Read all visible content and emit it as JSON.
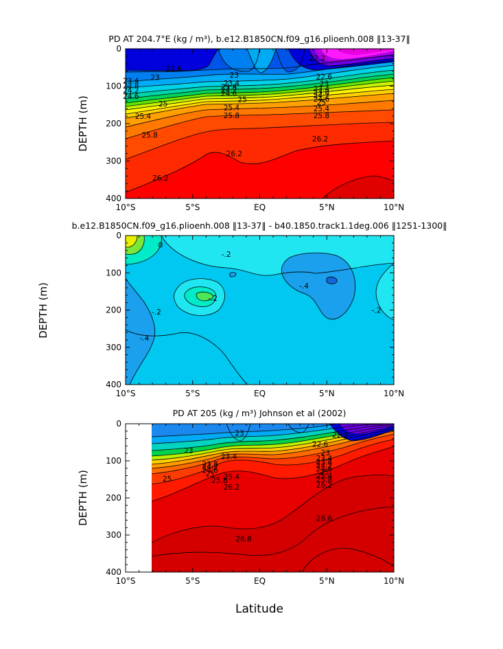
{
  "figure": {
    "xlabel": "Latitude",
    "x_tick_labels": [
      "10°S",
      "5°S",
      "EQ",
      "5°N",
      "10°N"
    ],
    "y_tick_labels": [
      "0",
      "100",
      "200",
      "300",
      "400"
    ],
    "ylabel": "DEPTH (m)"
  },
  "chart_data": [
    {
      "type": "heatmap",
      "title": "PD AT 204.7°E (kg / m³), b.e12.B1850CN.f09_g16.plioenh.008 ‖13-37‖",
      "xlabel": "",
      "ylabel": "DEPTH (m)",
      "x_range": [
        -10,
        10
      ],
      "ylim": [
        0,
        400
      ],
      "contour_labels": [
        {
          "text": "22.2",
          "x": 4.3,
          "y": 25
        },
        {
          "text": "22.6",
          "x": -6.4,
          "y": 53
        },
        {
          "text": "23",
          "x": -7.8,
          "y": 76
        },
        {
          "text": "23",
          "x": -1.9,
          "y": 70
        },
        {
          "text": "22.6",
          "x": 4.8,
          "y": 74
        },
        {
          "text": "23",
          "x": 4.8,
          "y": 93
        },
        {
          "text": "23.4",
          "x": -9.6,
          "y": 85
        },
        {
          "text": "23.8",
          "x": -9.6,
          "y": 98
        },
        {
          "text": "24.2",
          "x": -9.6,
          "y": 111
        },
        {
          "text": "24.6",
          "x": -9.6,
          "y": 127
        },
        {
          "text": "25",
          "x": -7.2,
          "y": 147
        },
        {
          "text": "23.4",
          "x": -2.1,
          "y": 92
        },
        {
          "text": "23.8",
          "x": -2.3,
          "y": 102
        },
        {
          "text": "24.2",
          "x": -2.3,
          "y": 110
        },
        {
          "text": "24.6",
          "x": -2.3,
          "y": 119
        },
        {
          "text": "25",
          "x": -1.3,
          "y": 135
        },
        {
          "text": "25.4",
          "x": -2.1,
          "y": 157
        },
        {
          "text": "25.8",
          "x": -2.1,
          "y": 178
        },
        {
          "text": "23.4",
          "x": 4.6,
          "y": 106
        },
        {
          "text": "23.8",
          "x": 4.6,
          "y": 116
        },
        {
          "text": "24.2",
          "x": 4.6,
          "y": 125
        },
        {
          "text": "24.6",
          "x": 4.6,
          "y": 134
        },
        {
          "text": "25",
          "x": 4.6,
          "y": 143
        },
        {
          "text": "25.4",
          "x": 4.6,
          "y": 160
        },
        {
          "text": "25.8",
          "x": 4.6,
          "y": 178
        },
        {
          "text": "25.4",
          "x": -8.7,
          "y": 180
        },
        {
          "text": "25.8",
          "x": -8.2,
          "y": 230
        },
        {
          "text": "26.2",
          "x": 4.5,
          "y": 240
        },
        {
          "text": "26.2",
          "x": -1.9,
          "y": 280
        },
        {
          "text": "26.2",
          "x": -7.4,
          "y": 345
        }
      ]
    },
    {
      "type": "heatmap",
      "title": "b.e12.B1850CN.f09_g16.plioenh.008 ‖13-37‖ - b40.1850.track1.1deg.006 ‖1251-1300‖",
      "xlabel": "",
      "ylabel": "DEPTH (m)",
      "x_range": [
        -10,
        10
      ],
      "ylim": [
        0,
        400
      ],
      "contour_labels": [
        {
          "text": "0",
          "x": -7.4,
          "y": 25
        },
        {
          "text": "-.2",
          "x": -2.5,
          "y": 50
        },
        {
          "text": "-.2",
          "x": -3.5,
          "y": 168
        },
        {
          "text": "-.2",
          "x": -7.7,
          "y": 205
        },
        {
          "text": "-.4",
          "x": -8.6,
          "y": 275
        },
        {
          "text": "-.4",
          "x": 3.3,
          "y": 135
        },
        {
          "text": "-.2",
          "x": 8.7,
          "y": 200
        }
      ]
    },
    {
      "type": "heatmap",
      "title": "PD AT 205 (kg / m³) Johnson et al (2002)",
      "xlabel": "Latitude",
      "ylabel": "DEPTH (m)",
      "x_range": [
        -10,
        10
      ],
      "ylim": [
        0,
        400
      ],
      "contour_labels": [
        {
          "text": "22.2",
          "x": 6.0,
          "y": 30
        },
        {
          "text": "23",
          "x": -1.5,
          "y": 25
        },
        {
          "text": "22.6",
          "x": 4.5,
          "y": 55
        },
        {
          "text": "23",
          "x": -5.3,
          "y": 72
        },
        {
          "text": "23",
          "x": 4.9,
          "y": 78
        },
        {
          "text": "23.4",
          "x": -2.3,
          "y": 88
        },
        {
          "text": "23.8",
          "x": -3.7,
          "y": 108
        },
        {
          "text": "24.2",
          "x": -3.7,
          "y": 116
        },
        {
          "text": "24.6",
          "x": -3.7,
          "y": 125
        },
        {
          "text": "25",
          "x": -3.7,
          "y": 134
        },
        {
          "text": "25.4",
          "x": -2.1,
          "y": 143
        },
        {
          "text": "25.8",
          "x": -3.0,
          "y": 152
        },
        {
          "text": "26.2",
          "x": -2.1,
          "y": 170
        },
        {
          "text": "23.4",
          "x": 4.8,
          "y": 93
        },
        {
          "text": "23.8",
          "x": 4.8,
          "y": 103
        },
        {
          "text": "24.2",
          "x": 4.8,
          "y": 112
        },
        {
          "text": "24.6",
          "x": 4.8,
          "y": 121
        },
        {
          "text": "25",
          "x": 4.8,
          "y": 130
        },
        {
          "text": "25.4",
          "x": 4.8,
          "y": 140
        },
        {
          "text": "25.8",
          "x": 4.8,
          "y": 150
        },
        {
          "text": "26.2",
          "x": 4.8,
          "y": 165
        },
        {
          "text": "25",
          "x": -6.9,
          "y": 148
        },
        {
          "text": "26.6",
          "x": 4.8,
          "y": 255
        },
        {
          "text": "26.8",
          "x": -1.2,
          "y": 310
        }
      ]
    }
  ]
}
